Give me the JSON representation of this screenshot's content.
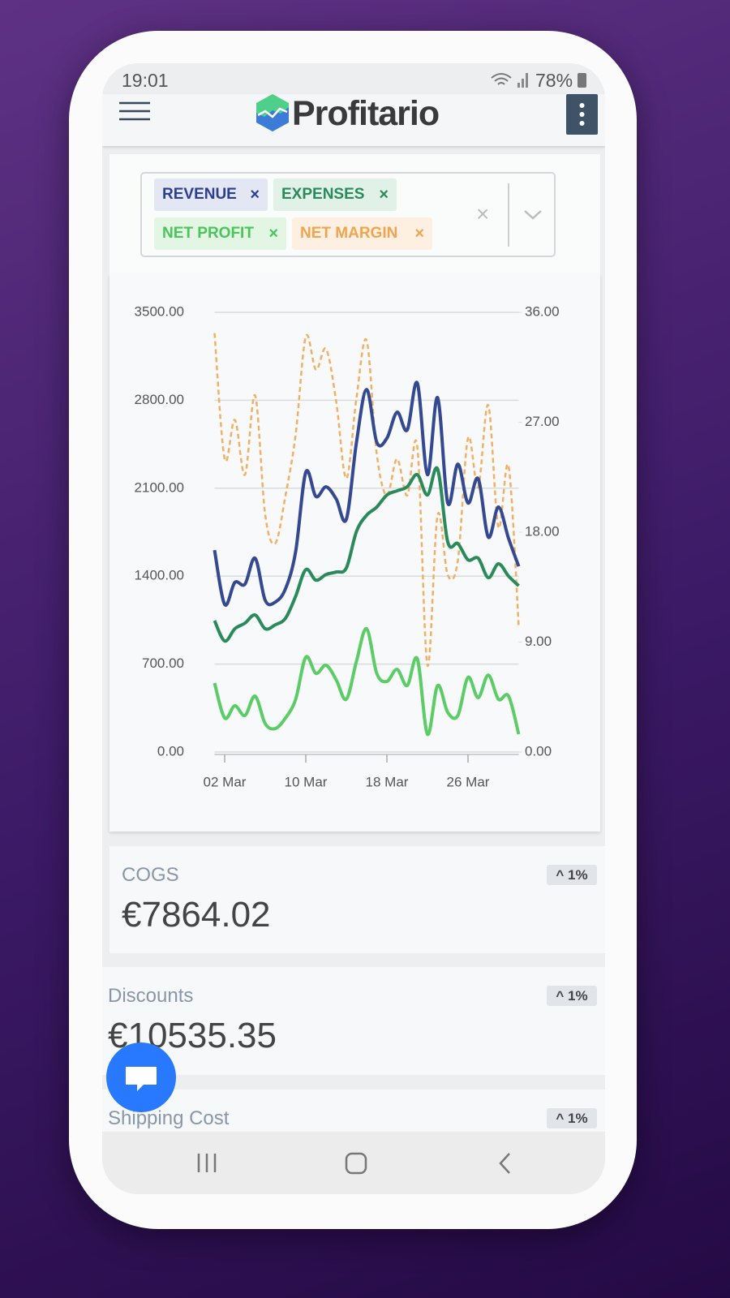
{
  "status_bar": {
    "time": "19:01",
    "battery": "78%"
  },
  "header": {
    "brand": "Profitario"
  },
  "chart_data": {
    "type": "line",
    "categories": [
      "01 Mar",
      "02 Mar",
      "03 Mar",
      "04 Mar",
      "05 Mar",
      "06 Mar",
      "07 Mar",
      "08 Mar",
      "09 Mar",
      "10 Mar",
      "11 Mar",
      "12 Mar",
      "13 Mar",
      "14 Mar",
      "15 Mar",
      "16 Mar",
      "17 Mar",
      "18 Mar",
      "19 Mar",
      "20 Mar",
      "21 Mar",
      "22 Mar",
      "23 Mar",
      "24 Mar",
      "25 Mar",
      "26 Mar",
      "27 Mar",
      "28 Mar",
      "29 Mar",
      "30 Mar",
      "31 Mar"
    ],
    "xticks": [
      "02 Mar",
      "10 Mar",
      "18 Mar",
      "26 Mar"
    ],
    "ylim": [
      0,
      3500
    ],
    "yticks": [
      {
        "value": 0,
        "label": "0.00"
      },
      {
        "value": 700,
        "label": "700.00"
      },
      {
        "value": 1400,
        "label": "1400.00"
      },
      {
        "value": 2100,
        "label": "2100.00"
      },
      {
        "value": 2800,
        "label": "2800.00"
      },
      {
        "value": 3500,
        "label": "3500.00"
      }
    ],
    "y2lim": [
      0,
      36
    ],
    "y2ticks": [
      {
        "value": 0,
        "label": "0.00"
      },
      {
        "value": 9,
        "label": "9.00"
      },
      {
        "value": 18,
        "label": "18.00"
      },
      {
        "value": 27,
        "label": "27.00"
      },
      {
        "value": 36,
        "label": "36.00"
      }
    ],
    "grid": true,
    "series": [
      {
        "name": "REVENUE",
        "color": "#34498f",
        "values": [
          1607,
          1175,
          1350,
          1336,
          1543,
          1207,
          1194,
          1300,
          1595,
          2227,
          2034,
          2111,
          2014,
          1853,
          2466,
          2886,
          2466,
          2498,
          2705,
          2563,
          2937,
          2208,
          2821,
          1982,
          2292,
          1982,
          2176,
          1711,
          1950,
          1700,
          1478
        ]
      },
      {
        "name": "EXPENSES",
        "color": "#2a8a5a",
        "values": [
          1046,
          884,
          981,
          1026,
          1091,
          981,
          1013,
          1065,
          1240,
          1452,
          1368,
          1413,
          1433,
          1465,
          1756,
          1885,
          1950,
          2046,
          2079,
          2111,
          2208,
          2046,
          2253,
          1672,
          1659,
          1530,
          1543,
          1388,
          1498,
          1400,
          1323
        ]
      },
      {
        "name": "NET PROFIT",
        "color": "#5ccc66",
        "values": [
          549,
          271,
          368,
          291,
          445,
          226,
          187,
          271,
          420,
          755,
          626,
          691,
          575,
          420,
          723,
          981,
          626,
          562,
          658,
          529,
          742,
          142,
          529,
          316,
          291,
          594,
          433,
          613,
          420,
          445,
          142
        ]
      },
      {
        "name": "NET MARGIN",
        "color": "#f2b064",
        "axis": "y2",
        "line_style": "dashed",
        "values": [
          34.3,
          24.0,
          27.2,
          22.7,
          29.2,
          19.4,
          17.1,
          21.0,
          26.0,
          34.0,
          31.3,
          33.0,
          28.7,
          22.4,
          29.0,
          33.7,
          24.4,
          21.0,
          24.0,
          21.0,
          25.0,
          7.1,
          19.4,
          14.5,
          15.7,
          25.7,
          21.7,
          28.4,
          18.4,
          23.4,
          10.3
        ]
      }
    ]
  },
  "cards": [
    {
      "label": "COGS",
      "value": "€7864.02",
      "change": "1%"
    },
    {
      "label": "Discounts",
      "value": "€10535.35",
      "change": "1%"
    },
    {
      "label": "Shipping Cost",
      "change": "1%"
    }
  ]
}
